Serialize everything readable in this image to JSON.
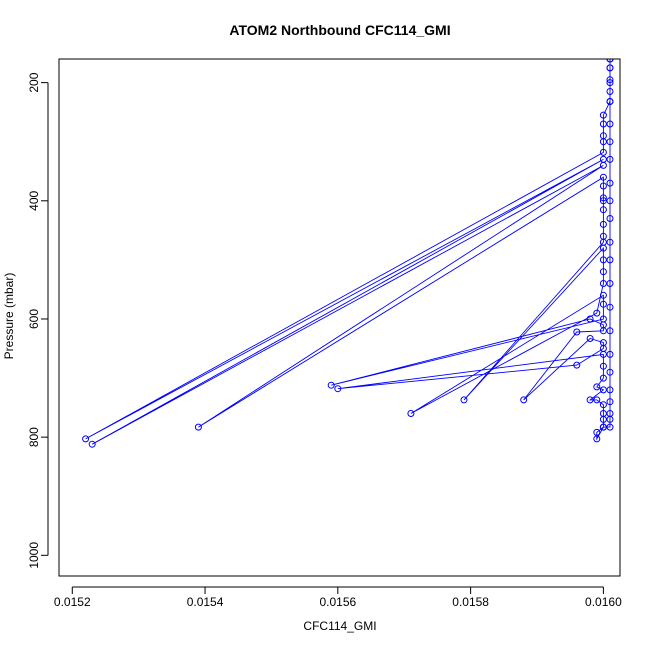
{
  "chart_data": {
    "type": "line",
    "title": "ATOM2 Northbound CFC114_GMI",
    "xlabel": "CFC114_GMI",
    "ylabel": "Pressure (mbar)",
    "xlim": [
      0.01518,
      0.016025
    ],
    "ylim": [
      1035,
      160
    ],
    "y_reversed": true,
    "x_ticks": [
      0.0152,
      0.0154,
      0.0156,
      0.0158,
      0.016
    ],
    "x_tick_labels": [
      "0.0152",
      "0.0154",
      "0.0156",
      "0.0158",
      "0.0160"
    ],
    "y_ticks": [
      200,
      400,
      600,
      800,
      1000
    ],
    "y_tick_labels": [
      "200",
      "400",
      "600",
      "800",
      "1000"
    ],
    "grid": false,
    "legend": "none",
    "marker": "open-circle",
    "series": [
      {
        "color": "#0000ff",
        "points": [
          [
            0.01601,
            160
          ],
          [
            0.01601,
            175
          ],
          [
            0.01601,
            195
          ],
          [
            0.01601,
            215
          ],
          [
            0.01601,
            232
          ],
          [
            0.016,
            255
          ],
          [
            0.016,
            270
          ],
          [
            0.016,
            290
          ],
          [
            0.016,
            300
          ],
          [
            0.016,
            318
          ],
          [
            0.01522,
            803
          ],
          [
            0.016,
            330
          ],
          [
            0.01523,
            812
          ],
          [
            0.016,
            340
          ],
          [
            0.01539,
            783
          ],
          [
            0.016,
            360
          ],
          [
            0.016,
            375
          ],
          [
            0.016,
            395
          ],
          [
            0.016,
            400
          ],
          [
            0.016,
            415
          ],
          [
            0.016,
            440
          ],
          [
            0.016,
            460
          ],
          [
            0.016,
            470
          ],
          [
            0.01579,
            737
          ],
          [
            0.016,
            480
          ],
          [
            0.016,
            500
          ],
          [
            0.016,
            520
          ],
          [
            0.016,
            540
          ],
          [
            0.01599,
            590
          ],
          [
            0.01571,
            760
          ],
          [
            0.016,
            560
          ],
          [
            0.016,
            575
          ],
          [
            0.016,
            600
          ],
          [
            0.01559,
            712
          ],
          [
            0.01598,
            600
          ],
          [
            0.016,
            610
          ],
          [
            0.016,
            620
          ],
          [
            0.01596,
            622
          ],
          [
            0.01588,
            737
          ],
          [
            0.01598,
            633
          ],
          [
            0.016,
            640
          ],
          [
            0.016,
            650
          ],
          [
            0.01596,
            678
          ],
          [
            0.0156,
            718
          ],
          [
            0.016,
            660
          ],
          [
            0.016,
            680
          ],
          [
            0.016,
            700
          ],
          [
            0.01599,
            715
          ],
          [
            0.016,
            720
          ],
          [
            0.01598,
            737
          ],
          [
            0.01599,
            737
          ],
          [
            0.016,
            745
          ],
          [
            0.016,
            760
          ],
          [
            0.016,
            770
          ],
          [
            0.016,
            783
          ],
          [
            0.01599,
            792
          ],
          [
            0.01599,
            803
          ],
          [
            0.016,
            783
          ],
          [
            0.01601,
            783
          ],
          [
            0.01601,
            770
          ],
          [
            0.01601,
            760
          ],
          [
            0.01601,
            740
          ],
          [
            0.01601,
            720
          ],
          [
            0.01601,
            690
          ],
          [
            0.01601,
            660
          ],
          [
            0.01601,
            620
          ],
          [
            0.01601,
            580
          ],
          [
            0.01601,
            540
          ],
          [
            0.01601,
            500
          ],
          [
            0.01601,
            470
          ],
          [
            0.01601,
            430
          ],
          [
            0.01601,
            400
          ],
          [
            0.01601,
            370
          ],
          [
            0.01601,
            330
          ],
          [
            0.01601,
            300
          ],
          [
            0.01601,
            270
          ],
          [
            0.01601,
            232
          ],
          [
            0.01601,
            200
          ],
          [
            0.01601,
            175
          ],
          [
            0.01601,
            160
          ]
        ]
      }
    ]
  }
}
